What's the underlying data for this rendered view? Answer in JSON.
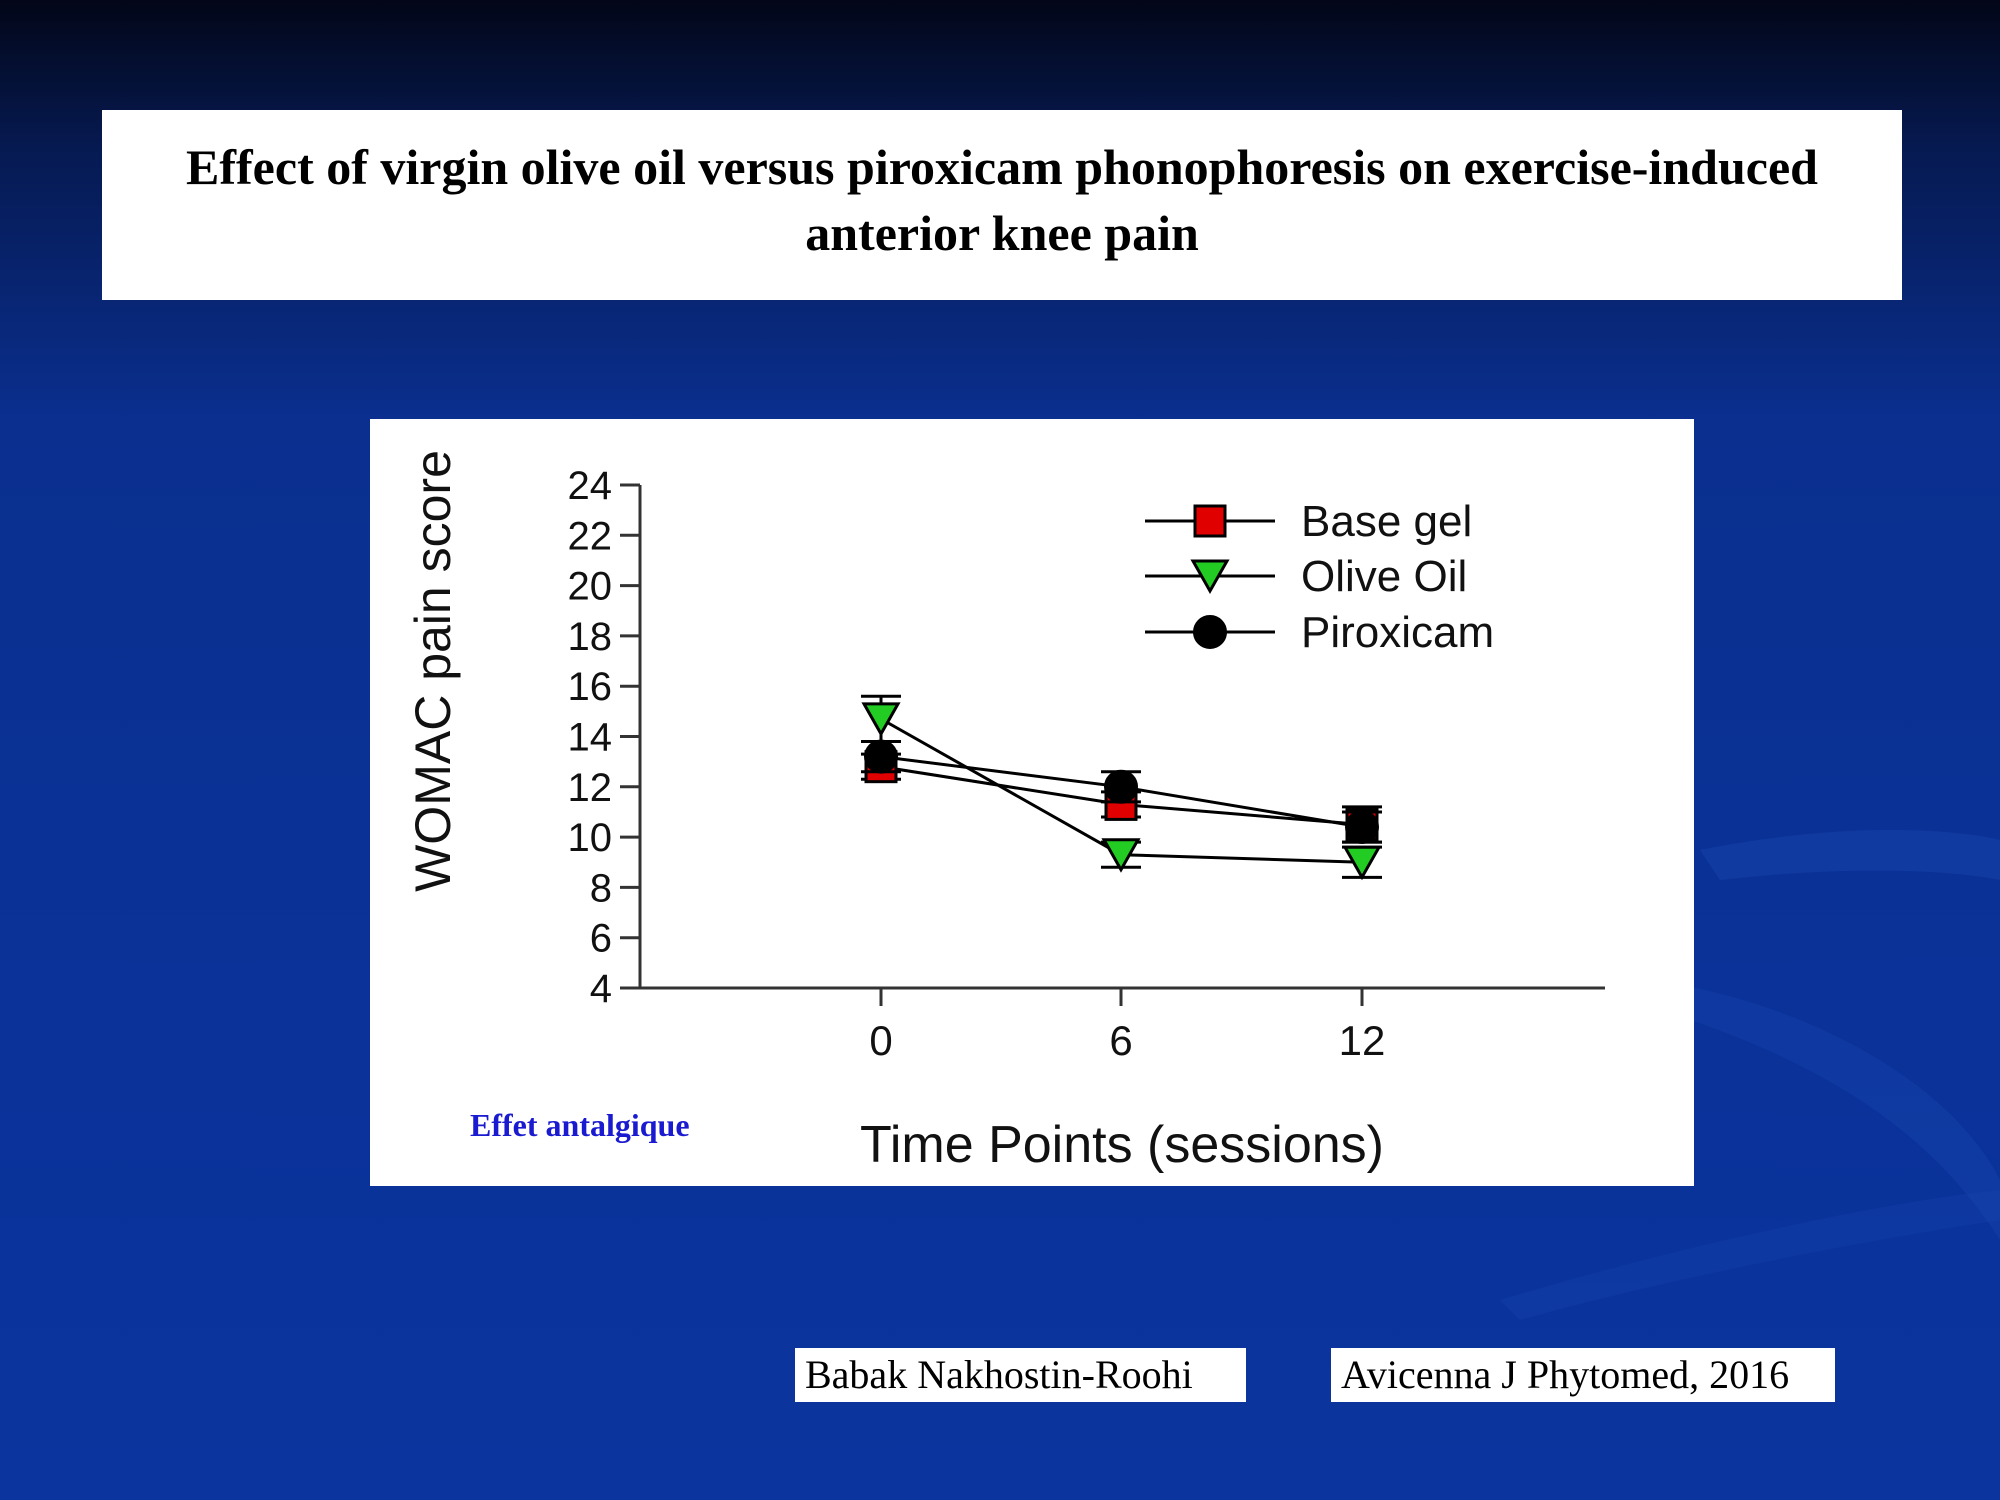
{
  "slide": {
    "title": "Effect of virgin olive oil versus piroxicam phonophoresis on exercise-induced anterior knee pain",
    "caption": "Effet antalgique",
    "author": "Babak Nakhostin-Roohi",
    "journal": "Avicenna J Phytomed, 2016"
  },
  "colors": {
    "base_gel": "#e00000",
    "olive_oil": "#22cc22",
    "piroxicam": "#000000"
  },
  "chart_data": {
    "type": "line",
    "title": "",
    "xlabel": "Time Points (sessions)",
    "ylabel": "WOMAC pain score",
    "x": [
      0,
      6,
      12
    ],
    "xticks": [
      "0",
      "6",
      "12"
    ],
    "yticks": [
      4,
      6,
      8,
      10,
      12,
      14,
      16,
      18,
      20,
      22,
      24
    ],
    "ylim": [
      4,
      24
    ],
    "legend_position": "top-right",
    "grid": false,
    "series": [
      {
        "name": "Base gel",
        "marker": "square",
        "color": "#e00000",
        "values": [
          12.8,
          11.3,
          10.5
        ],
        "errors": [
          0.5,
          0.5,
          0.7
        ]
      },
      {
        "name": "Olive Oil",
        "marker": "triangle-down",
        "color": "#22cc22",
        "values": [
          14.7,
          9.3,
          9.0
        ],
        "errors": [
          0.9,
          0.5,
          0.6
        ]
      },
      {
        "name": "Piroxicam",
        "marker": "circle",
        "color": "#000000",
        "values": [
          13.2,
          12.0,
          10.4
        ],
        "errors": [
          0.6,
          0.6,
          0.6
        ]
      }
    ]
  }
}
